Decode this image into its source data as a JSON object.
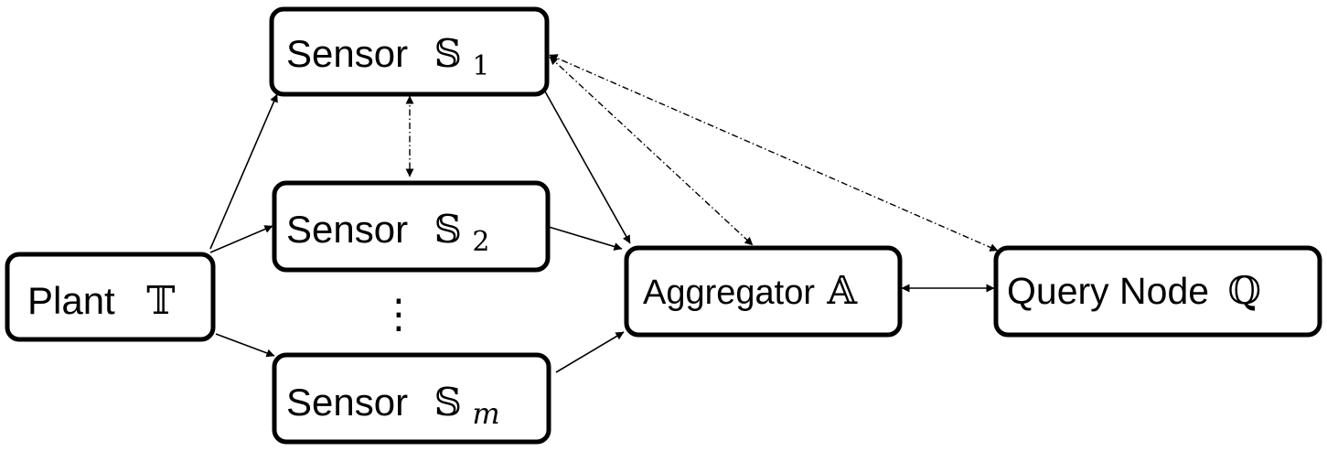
{
  "nodes": {
    "sensor1": {
      "text": "Sensor",
      "symbol": "𝕊",
      "subscript": "1"
    },
    "sensor2": {
      "text": "Sensor",
      "symbol": "𝕊",
      "subscript": "2"
    },
    "sensorm": {
      "text": "Sensor",
      "symbol": "𝕊",
      "subscript": "m"
    },
    "plant": {
      "text": "Plant",
      "symbol": "𝕋"
    },
    "aggregator": {
      "text": "Aggregator",
      "symbol": "𝔸"
    },
    "query": {
      "text": "Query Node",
      "symbol": "ℚ"
    }
  },
  "ellipsis": "⋮",
  "edges": [
    {
      "from": "plant",
      "to": "sensor1",
      "style": "solid",
      "direction": "forward"
    },
    {
      "from": "plant",
      "to": "sensor2",
      "style": "solid",
      "direction": "forward"
    },
    {
      "from": "plant",
      "to": "sensorm",
      "style": "solid",
      "direction": "forward"
    },
    {
      "from": "sensor1",
      "to": "aggregator",
      "style": "solid",
      "direction": "forward"
    },
    {
      "from": "sensor2",
      "to": "aggregator",
      "style": "solid",
      "direction": "forward"
    },
    {
      "from": "sensorm",
      "to": "aggregator",
      "style": "solid",
      "direction": "forward"
    },
    {
      "from": "sensor1",
      "to": "sensor2",
      "style": "dash-dot",
      "direction": "both"
    },
    {
      "from": "sensor1",
      "to": "aggregator",
      "style": "dash-dot",
      "direction": "both"
    },
    {
      "from": "sensor1",
      "to": "query",
      "style": "dash-dot",
      "direction": "both"
    },
    {
      "from": "aggregator",
      "to": "query",
      "style": "solid",
      "direction": "both"
    }
  ]
}
